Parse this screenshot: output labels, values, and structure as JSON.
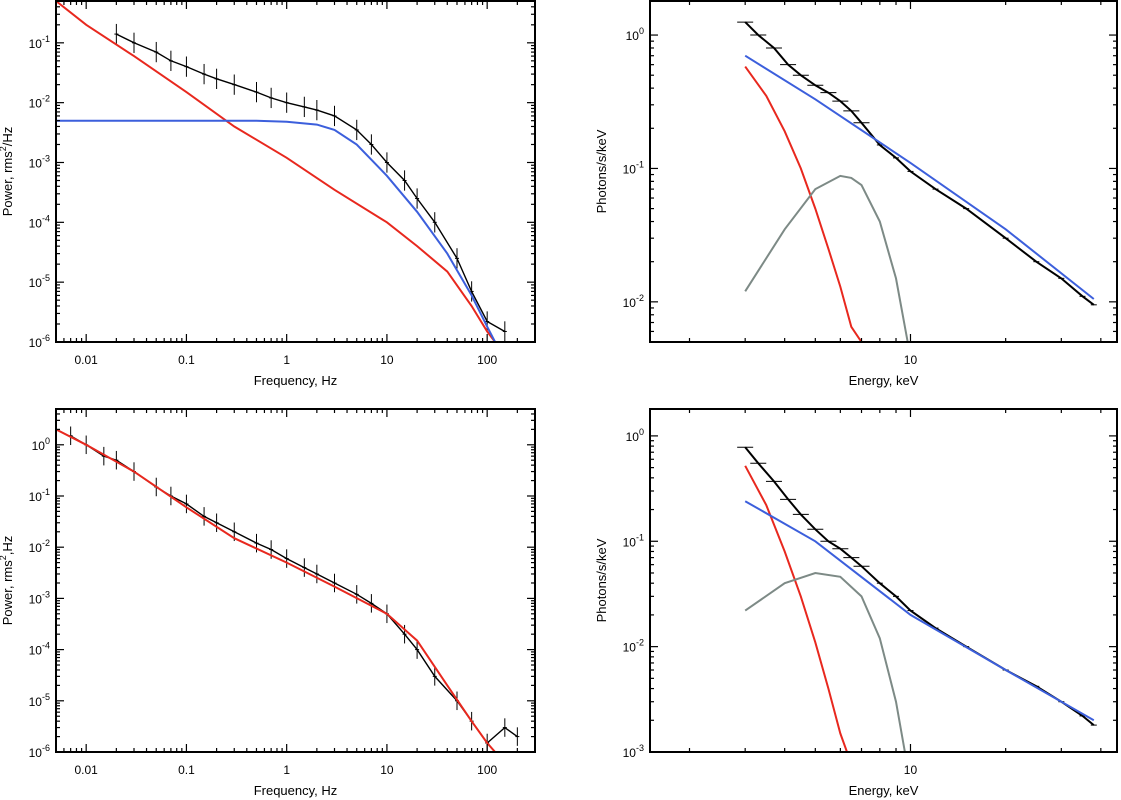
{
  "colors": {
    "red": "#e8281e",
    "blue": "#3c5fdc",
    "gray": "#7d8a86",
    "black": "#000000"
  },
  "chart_data": [
    {
      "id": "pds-top",
      "type": "line",
      "xscale": "log",
      "yscale": "log",
      "xlim": [
        0.005,
        300
      ],
      "ylim": [
        1e-06,
        0.5
      ],
      "xlabel": "Frequency, Hz",
      "ylabel_parts": [
        "Power, rms",
        "2",
        "/Hz"
      ],
      "xticks": [
        {
          "v": 0.01,
          "label": "0.01"
        },
        {
          "v": 0.1,
          "label": "0.1"
        },
        {
          "v": 1,
          "label": "1"
        },
        {
          "v": 10,
          "label": "10"
        },
        {
          "v": 100,
          "label": "100"
        }
      ],
      "yticks": [
        {
          "v": 1e-06,
          "b": "10",
          "e": "-6"
        },
        {
          "v": 1e-05,
          "b": "10",
          "e": "-5"
        },
        {
          "v": 0.0001,
          "b": "10",
          "e": "-4"
        },
        {
          "v": 0.001,
          "b": "10",
          "e": "-3"
        },
        {
          "v": 0.01,
          "b": "10",
          "e": "-2"
        },
        {
          "v": 0.1,
          "b": "10",
          "e": "-1"
        }
      ],
      "series": [
        {
          "name": "observed power spectrum",
          "color": "black",
          "kind": "errorbars",
          "x": [
            0.02,
            0.03,
            0.05,
            0.07,
            0.1,
            0.15,
            0.2,
            0.3,
            0.5,
            0.7,
            1,
            1.5,
            2,
            3,
            5,
            7,
            10,
            15,
            20,
            30,
            50,
            70,
            100,
            150
          ],
          "y": [
            0.14,
            0.1,
            0.07,
            0.05,
            0.04,
            0.03,
            0.025,
            0.02,
            0.015,
            0.012,
            0.01,
            0.0085,
            0.0075,
            0.006,
            0.0035,
            0.002,
            0.001,
            0.0005,
            0.00025,
            0.0001,
            2.5e-05,
            7e-06,
            2.2e-06,
            1.5e-06
          ]
        },
        {
          "name": "red component",
          "color": "red",
          "kind": "line",
          "x": [
            0.005,
            0.01,
            0.03,
            0.1,
            0.3,
            1,
            3,
            10,
            20,
            40,
            70,
            100,
            120
          ],
          "y": [
            0.5,
            0.2,
            0.06,
            0.015,
            0.004,
            0.0012,
            0.00035,
            0.0001,
            4e-05,
            1.5e-05,
            4e-06,
            1.5e-06,
            1e-06
          ]
        },
        {
          "name": "blue component",
          "color": "blue",
          "kind": "line",
          "x": [
            0.005,
            0.1,
            0.5,
            1,
            2,
            3,
            5,
            10,
            20,
            40,
            70,
            100,
            120
          ],
          "y": [
            0.005,
            0.005,
            0.005,
            0.0048,
            0.0043,
            0.0035,
            0.002,
            0.0006,
            0.00015,
            3e-05,
            6e-06,
            1.8e-06,
            1e-06
          ]
        }
      ]
    },
    {
      "id": "spec-top",
      "type": "line",
      "xscale": "log",
      "yscale": "log",
      "xlim": [
        1.5,
        45
      ],
      "ylim": [
        0.005,
        1.8
      ],
      "xlabel": "Energy, keV",
      "ylabel_parts": [
        "Photons/s/keV"
      ],
      "xticks": [
        {
          "v": 10,
          "label": "10"
        }
      ],
      "yticks": [
        {
          "v": 0.01,
          "b": "10",
          "e": "-2"
        },
        {
          "v": 0.1,
          "b": "10",
          "e": "-1"
        },
        {
          "v": 1,
          "b": "10",
          "e": "0"
        }
      ],
      "series": [
        {
          "name": "observed spectrum",
          "color": "black",
          "kind": "steps",
          "x": [
            3,
            3.3,
            3.7,
            4.1,
            4.5,
            5,
            5.5,
            6,
            6.5,
            7,
            8,
            9,
            10,
            12,
            15,
            20,
            25,
            30,
            35,
            38
          ],
          "y": [
            1.25,
            1.0,
            0.8,
            0.6,
            0.5,
            0.42,
            0.37,
            0.32,
            0.27,
            0.22,
            0.15,
            0.12,
            0.095,
            0.07,
            0.05,
            0.03,
            0.02,
            0.015,
            0.011,
            0.0095
          ]
        },
        {
          "name": "red component",
          "color": "red",
          "kind": "line",
          "x": [
            3,
            3.5,
            4,
            4.5,
            5,
            5.5,
            6,
            6.5,
            7
          ],
          "y": [
            0.58,
            0.35,
            0.19,
            0.1,
            0.05,
            0.025,
            0.013,
            0.0065,
            0.005
          ]
        },
        {
          "name": "blue component",
          "color": "blue",
          "kind": "line",
          "x": [
            3,
            5,
            10,
            20,
            38
          ],
          "y": [
            0.7,
            0.33,
            0.11,
            0.035,
            0.0105
          ]
        },
        {
          "name": "gray component",
          "color": "gray",
          "kind": "line",
          "x": [
            3,
            4,
            5,
            6,
            6.5,
            7,
            8,
            9,
            9.8
          ],
          "y": [
            0.012,
            0.035,
            0.07,
            0.088,
            0.085,
            0.075,
            0.04,
            0.015,
            0.005
          ]
        }
      ]
    },
    {
      "id": "pds-bottom",
      "type": "line",
      "xscale": "log",
      "yscale": "log",
      "xlim": [
        0.005,
        300
      ],
      "ylim": [
        1e-06,
        5
      ],
      "xlabel": "Frequency, Hz",
      "ylabel_parts": [
        "Power, rms",
        "2",
        ",Hz"
      ],
      "xticks": [
        {
          "v": 0.01,
          "label": "0.01"
        },
        {
          "v": 0.1,
          "label": "0.1"
        },
        {
          "v": 1,
          "label": "1"
        },
        {
          "v": 10,
          "label": "10"
        },
        {
          "v": 100,
          "label": "100"
        }
      ],
      "yticks": [
        {
          "v": 1e-06,
          "b": "10",
          "e": "-6"
        },
        {
          "v": 1e-05,
          "b": "10",
          "e": "-5"
        },
        {
          "v": 0.0001,
          "b": "10",
          "e": "-4"
        },
        {
          "v": 0.001,
          "b": "10",
          "e": "-3"
        },
        {
          "v": 0.01,
          "b": "10",
          "e": "-2"
        },
        {
          "v": 0.1,
          "b": "10",
          "e": "-1"
        },
        {
          "v": 1,
          "b": "10",
          "e": "0"
        }
      ],
      "series": [
        {
          "name": "observed power spectrum",
          "color": "black",
          "kind": "errorbars",
          "x": [
            0.007,
            0.01,
            0.015,
            0.02,
            0.03,
            0.05,
            0.07,
            0.1,
            0.15,
            0.2,
            0.3,
            0.5,
            0.7,
            1,
            1.5,
            2,
            3,
            5,
            7,
            10,
            15,
            20,
            30,
            50,
            70,
            100,
            150,
            200
          ],
          "y": [
            1.5,
            1.0,
            0.6,
            0.5,
            0.3,
            0.15,
            0.1,
            0.07,
            0.04,
            0.03,
            0.02,
            0.012,
            0.009,
            0.006,
            0.004,
            0.003,
            0.002,
            0.0012,
            0.0008,
            0.0005,
            0.0002,
            0.0001,
            3e-05,
            1e-05,
            4e-06,
            1.5e-06,
            3e-06,
            2e-06
          ]
        },
        {
          "name": "red component",
          "color": "red",
          "kind": "line",
          "x": [
            0.005,
            0.01,
            0.03,
            0.1,
            0.3,
            1,
            3,
            10,
            20,
            40,
            70,
            100,
            120
          ],
          "y": [
            2.0,
            1.0,
            0.3,
            0.06,
            0.015,
            0.005,
            0.0017,
            0.0005,
            0.00015,
            2e-05,
            4e-06,
            1.5e-06,
            1e-06
          ]
        }
      ]
    },
    {
      "id": "spec-bottom",
      "type": "line",
      "xscale": "log",
      "yscale": "log",
      "xlim": [
        1.5,
        45
      ],
      "ylim": [
        0.001,
        1.8
      ],
      "xlabel": "Energy, keV",
      "ylabel_parts": [
        "Photons/s/keV"
      ],
      "xticks": [
        {
          "v": 10,
          "label": "10"
        }
      ],
      "yticks": [
        {
          "v": 0.001,
          "b": "10",
          "e": "-3"
        },
        {
          "v": 0.01,
          "b": "10",
          "e": "-2"
        },
        {
          "v": 0.1,
          "b": "10",
          "e": "-1"
        },
        {
          "v": 1,
          "b": "10",
          "e": "0"
        }
      ],
      "series": [
        {
          "name": "observed spectrum",
          "color": "black",
          "kind": "steps",
          "x": [
            3,
            3.3,
            3.7,
            4.1,
            4.5,
            5,
            5.5,
            6,
            6.5,
            7,
            8,
            9,
            10,
            12,
            15,
            20,
            25,
            30,
            35,
            38
          ],
          "y": [
            0.78,
            0.55,
            0.37,
            0.25,
            0.18,
            0.13,
            0.1,
            0.085,
            0.07,
            0.058,
            0.04,
            0.03,
            0.022,
            0.015,
            0.01,
            0.006,
            0.0042,
            0.003,
            0.0022,
            0.0018
          ]
        },
        {
          "name": "red component",
          "color": "red",
          "kind": "line",
          "x": [
            3,
            3.5,
            4,
            4.5,
            5,
            5.5,
            6,
            6.3
          ],
          "y": [
            0.52,
            0.22,
            0.08,
            0.03,
            0.011,
            0.004,
            0.0015,
            0.001
          ]
        },
        {
          "name": "blue component",
          "color": "blue",
          "kind": "line",
          "x": [
            3,
            5,
            10,
            20,
            38
          ],
          "y": [
            0.24,
            0.1,
            0.02,
            0.006,
            0.002
          ]
        },
        {
          "name": "gray component",
          "color": "gray",
          "kind": "line",
          "x": [
            3,
            4,
            5,
            6,
            7,
            8,
            9,
            9.6
          ],
          "y": [
            0.022,
            0.04,
            0.05,
            0.046,
            0.03,
            0.012,
            0.003,
            0.001
          ]
        }
      ]
    }
  ]
}
